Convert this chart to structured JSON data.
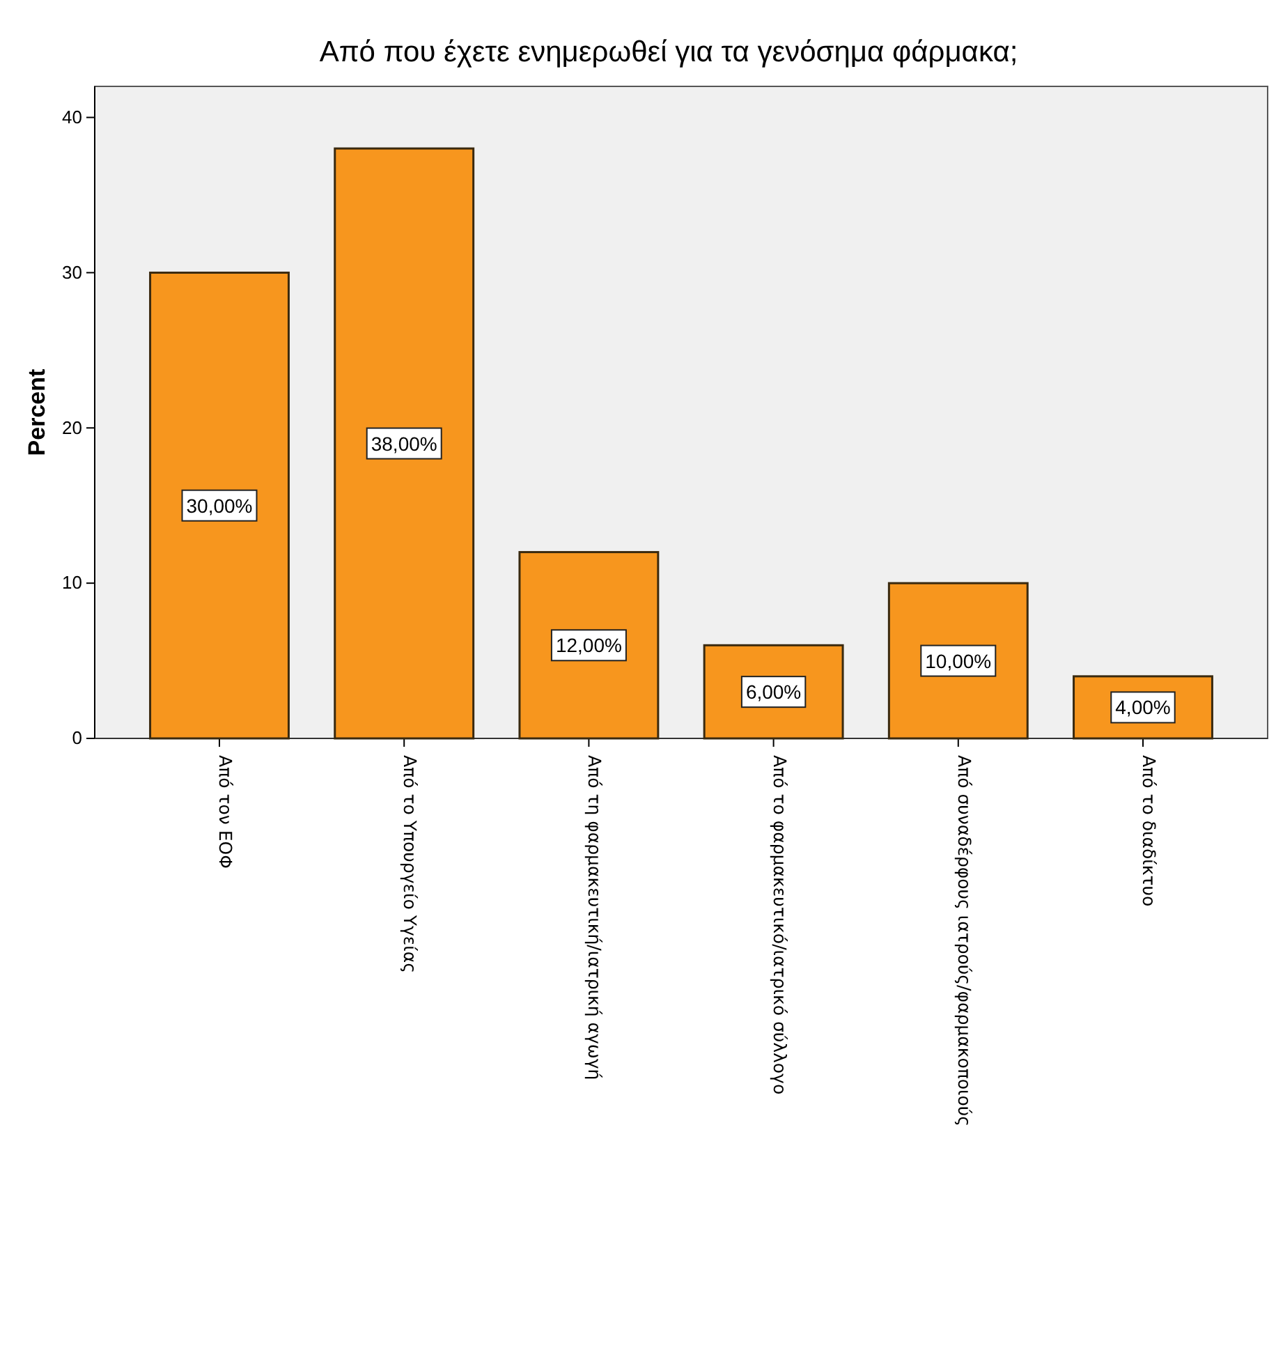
{
  "chart_data": {
    "type": "bar",
    "title": "Από που έχετε ενημερωθεί για τα γενόσημα φάρμακα;",
    "ylabel": "Percent",
    "categories": [
      "Από τον ΕΟΦ",
      "Από το Υπουργείο Υγείας",
      "Από τη φαρμακευτική/ιατρική αγωγή",
      "Από το φαρμακευτικό/ιατρικό σύλλογο",
      "Από συναδέρφους ιατρούς/φαρμακοποιούς",
      "Από το διαδίκτυο"
    ],
    "values": [
      30,
      38,
      12,
      6,
      10,
      4
    ],
    "value_labels": [
      "30,00%",
      "38,00%",
      "12,00%",
      "6,00%",
      "10,00%",
      "4,00%"
    ],
    "color": "#f7961e",
    "ylim": [
      0,
      42
    ],
    "yticks": [
      0,
      10,
      20,
      30,
      40
    ],
    "grid": false
  }
}
